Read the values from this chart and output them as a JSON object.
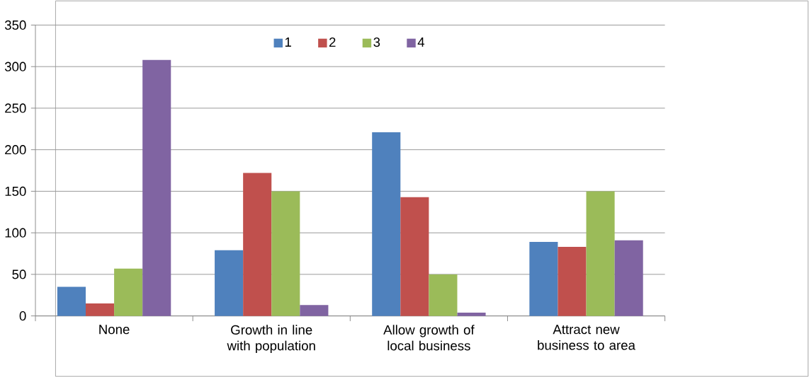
{
  "chart_data": {
    "type": "bar",
    "categories": [
      "None",
      "Growth in line with population",
      "Allow growth  of local business",
      "Attract new business to area"
    ],
    "series": [
      {
        "name": "1",
        "color": "#4f81bd",
        "values": [
          35,
          79,
          221,
          89
        ]
      },
      {
        "name": "2",
        "color": "#c0504d",
        "values": [
          15,
          172,
          143,
          83
        ]
      },
      {
        "name": "3",
        "color": "#9bbb59",
        "values": [
          57,
          150,
          50,
          150
        ]
      },
      {
        "name": "4",
        "color": "#8064a2",
        "values": [
          308,
          13,
          4,
          91
        ]
      }
    ],
    "ylim": [
      0,
      350
    ],
    "yticks": [
      0,
      50,
      100,
      150,
      200,
      250,
      300,
      350
    ],
    "grid": "y",
    "legend": "top"
  }
}
